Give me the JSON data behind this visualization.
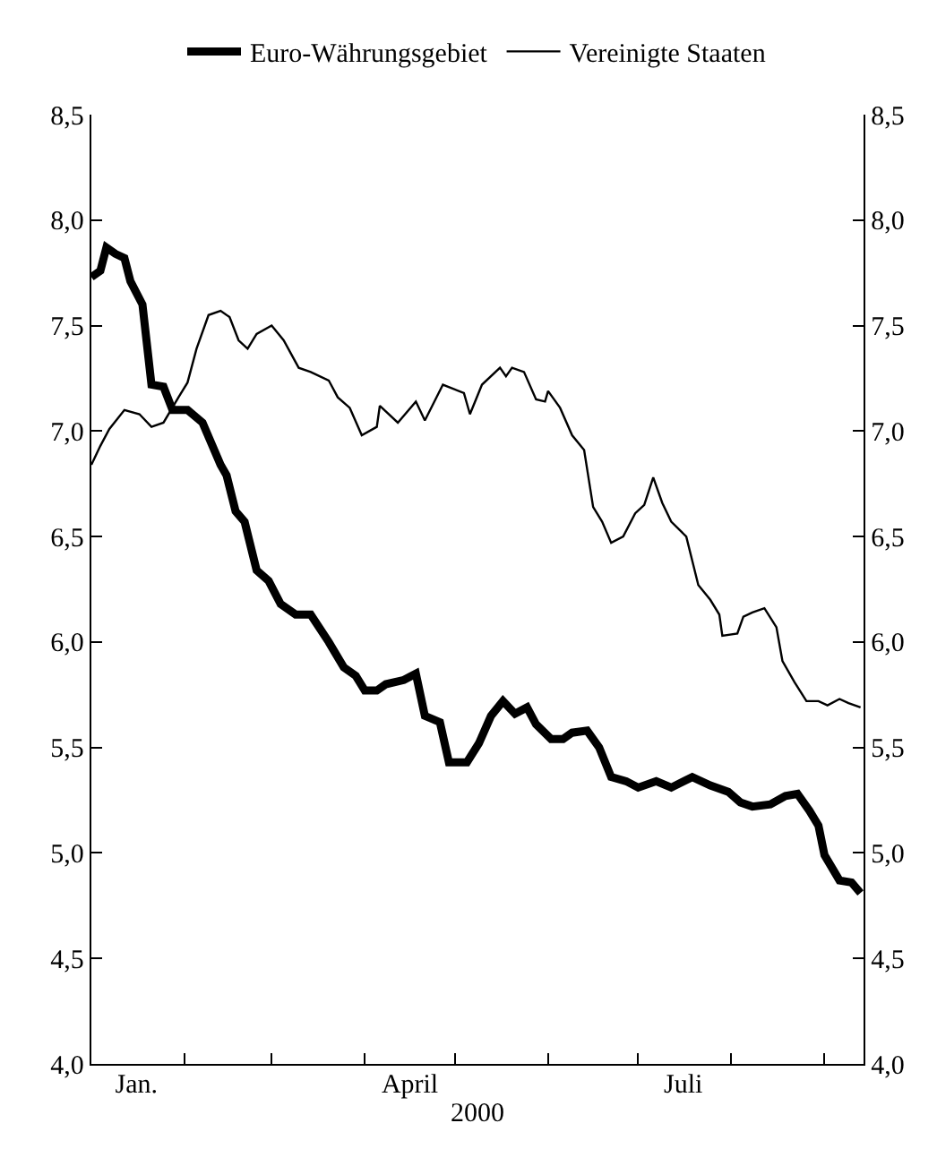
{
  "chart_data": {
    "type": "line",
    "xlabel": "2000",
    "xlim": [
      "2000-01-01",
      "2000-09-14"
    ],
    "xticks": [
      {
        "value": "2000-01-01",
        "label": null
      },
      {
        "value": "2000-01-16",
        "label": "Jan."
      },
      {
        "value": "2000-02-01",
        "label": null
      },
      {
        "value": "2000-03-01",
        "label": null
      },
      {
        "value": "2000-04-01",
        "label": null
      },
      {
        "value": "2000-04-16",
        "label": "April"
      },
      {
        "value": "2000-05-01",
        "label": null
      },
      {
        "value": "2000-06-01",
        "label": null
      },
      {
        "value": "2000-07-01",
        "label": null
      },
      {
        "value": "2000-07-16",
        "label": "Juli"
      },
      {
        "value": "2000-08-01",
        "label": null
      },
      {
        "value": "2000-09-01",
        "label": null
      }
    ],
    "ylim": [
      4.0,
      8.5
    ],
    "yticks": [
      {
        "value": 4.0,
        "label": "4,0"
      },
      {
        "value": 4.5,
        "label": "4,5"
      },
      {
        "value": 5.0,
        "label": "5,0"
      },
      {
        "value": 5.5,
        "label": "5,5"
      },
      {
        "value": 6.0,
        "label": "6,0"
      },
      {
        "value": 6.5,
        "label": "6,5"
      },
      {
        "value": 7.0,
        "label": "7,0"
      },
      {
        "value": 7.5,
        "label": "7,5"
      },
      {
        "value": 8.0,
        "label": "8,0"
      },
      {
        "value": 8.5,
        "label": "8,5"
      }
    ],
    "y2lim": [
      4.0,
      8.5
    ],
    "y2ticks": [
      {
        "value": 4.0,
        "label": "4,0"
      },
      {
        "value": 4.5,
        "label": "4,5"
      },
      {
        "value": 5.0,
        "label": "5,0"
      },
      {
        "value": 5.5,
        "label": "5,5"
      },
      {
        "value": 6.0,
        "label": "6,0"
      },
      {
        "value": 6.5,
        "label": "6,5"
      },
      {
        "value": 7.0,
        "label": "7,0"
      },
      {
        "value": 7.5,
        "label": "7,5"
      },
      {
        "value": 8.0,
        "label": "8,0"
      },
      {
        "value": 8.5,
        "label": "8,5"
      }
    ],
    "legend": "top",
    "marker": "none",
    "line_style": "solid",
    "series": [
      {
        "name": "Euro-Währungsgebiet",
        "color": "#000000",
        "x": [
          "2000-01-01",
          "2000-01-04",
          "2000-01-06",
          "2000-01-09",
          "2000-01-12",
          "2000-01-14",
          "2000-01-18",
          "2000-01-21",
          "2000-01-25",
          "2000-01-28",
          "2000-02-02",
          "2000-02-07",
          "2000-02-10",
          "2000-02-13",
          "2000-02-15",
          "2000-02-18",
          "2000-02-21",
          "2000-02-25",
          "2000-02-29",
          "2000-03-04",
          "2000-03-09",
          "2000-03-14",
          "2000-03-20",
          "2000-03-25",
          "2000-03-29",
          "2000-04-01",
          "2000-04-05",
          "2000-04-08",
          "2000-04-14",
          "2000-04-18",
          "2000-04-21",
          "2000-04-26",
          "2000-04-29",
          "2000-05-05",
          "2000-05-09",
          "2000-05-13",
          "2000-05-17",
          "2000-05-21",
          "2000-05-25",
          "2000-05-28",
          "2000-06-02",
          "2000-06-06",
          "2000-06-09",
          "2000-06-14",
          "2000-06-18",
          "2000-06-22",
          "2000-06-27",
          "2000-07-01",
          "2000-07-07",
          "2000-07-12",
          "2000-07-19",
          "2000-07-25",
          "2000-07-31",
          "2000-08-04",
          "2000-08-08",
          "2000-08-14",
          "2000-08-19",
          "2000-08-23",
          "2000-08-27",
          "2000-08-30",
          "2000-09-01",
          "2000-09-06",
          "2000-09-10",
          "2000-09-13"
        ],
        "values": [
          7.73,
          7.76,
          7.87,
          7.84,
          7.82,
          7.71,
          7.6,
          7.22,
          7.21,
          7.1,
          7.1,
          7.04,
          6.94,
          6.84,
          6.79,
          6.62,
          6.57,
          6.34,
          6.29,
          6.18,
          6.13,
          6.13,
          6.0,
          5.88,
          5.84,
          5.77,
          5.77,
          5.8,
          5.82,
          5.85,
          5.65,
          5.62,
          5.43,
          5.43,
          5.52,
          5.65,
          5.72,
          5.66,
          5.69,
          5.61,
          5.54,
          5.54,
          5.57,
          5.58,
          5.5,
          5.36,
          5.34,
          5.31,
          5.34,
          5.31,
          5.36,
          5.32,
          5.29,
          5.24,
          5.22,
          5.23,
          5.27,
          5.28,
          5.2,
          5.13,
          4.99,
          4.87,
          4.86,
          4.81
        ]
      },
      {
        "name": "Vereinigte Staaten",
        "color": "#000000",
        "x": [
          "2000-01-01",
          "2000-01-04",
          "2000-01-07",
          "2000-01-12",
          "2000-01-17",
          "2000-01-21",
          "2000-01-25",
          "2000-01-30",
          "2000-02-02",
          "2000-02-05",
          "2000-02-09",
          "2000-02-13",
          "2000-02-16",
          "2000-02-19",
          "2000-02-22",
          "2000-02-25",
          "2000-03-01",
          "2000-03-05",
          "2000-03-10",
          "2000-03-14",
          "2000-03-20",
          "2000-03-23",
          "2000-03-27",
          "2000-03-31",
          "2000-04-05",
          "2000-04-06",
          "2000-04-12",
          "2000-04-18",
          "2000-04-21",
          "2000-04-27",
          "2000-05-04",
          "2000-05-06",
          "2000-05-10",
          "2000-05-16",
          "2000-05-18",
          "2000-05-20",
          "2000-05-24",
          "2000-05-28",
          "2000-05-31",
          "2000-06-01",
          "2000-06-05",
          "2000-06-09",
          "2000-06-13",
          "2000-06-16",
          "2000-06-19",
          "2000-06-22",
          "2000-06-26",
          "2000-06-30",
          "2000-07-03",
          "2000-07-06",
          "2000-07-09",
          "2000-07-12",
          "2000-07-17",
          "2000-07-21",
          "2000-07-25",
          "2000-07-28",
          "2000-07-29",
          "2000-08-03",
          "2000-08-05",
          "2000-08-08",
          "2000-08-12",
          "2000-08-16",
          "2000-08-18",
          "2000-08-22",
          "2000-08-26",
          "2000-08-30",
          "2000-09-02",
          "2000-09-06",
          "2000-09-09",
          "2000-09-13"
        ],
        "values": [
          6.84,
          6.93,
          7.01,
          7.1,
          7.08,
          7.02,
          7.04,
          7.16,
          7.23,
          7.39,
          7.55,
          7.57,
          7.54,
          7.43,
          7.39,
          7.46,
          7.5,
          7.43,
          7.3,
          7.28,
          7.24,
          7.16,
          7.11,
          6.98,
          7.02,
          7.12,
          7.04,
          7.14,
          7.05,
          7.22,
          7.18,
          7.08,
          7.22,
          7.3,
          7.26,
          7.3,
          7.28,
          7.15,
          7.14,
          7.19,
          7.11,
          6.98,
          6.91,
          6.64,
          6.57,
          6.47,
          6.5,
          6.61,
          6.65,
          6.78,
          6.66,
          6.57,
          6.5,
          6.27,
          6.2,
          6.13,
          6.03,
          6.04,
          6.12,
          6.14,
          6.16,
          6.07,
          5.91,
          5.81,
          5.72,
          5.72,
          5.7,
          5.73,
          5.71,
          5.69
        ]
      }
    ]
  }
}
